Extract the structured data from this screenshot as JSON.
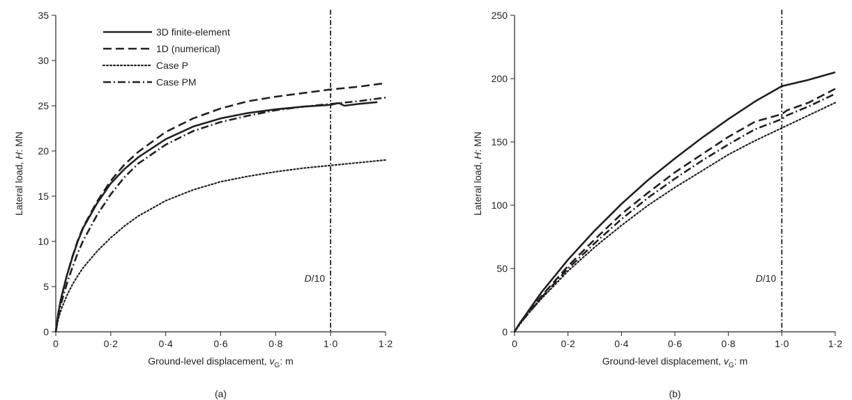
{
  "chart_data": [
    {
      "type": "line",
      "panel_label": "(a)",
      "xlabel_prefix": "Ground-level displacement, ",
      "xlabel_var": "v",
      "xlabel_sub": "G",
      "xlabel_suffix": ": m",
      "ylabel_prefix": "Lateral load, ",
      "ylabel_var": "H",
      "ylabel_suffix": ": MN",
      "xlim": [
        0,
        1.2
      ],
      "ylim": [
        0,
        35
      ],
      "xticks": [
        0,
        0.2,
        0.4,
        0.6,
        0.8,
        1.0,
        1.2
      ],
      "xtick_labels": [
        "0",
        "0·2",
        "0·4",
        "0·6",
        "0·8",
        "1·0",
        "1·2"
      ],
      "yticks": [
        0,
        5,
        10,
        15,
        20,
        25,
        30,
        35
      ],
      "ytick_labels": [
        "0",
        "5",
        "10",
        "15",
        "20",
        "25",
        "30",
        "35"
      ],
      "grid": false,
      "legend_position": "top-left",
      "vline": {
        "x": 1.0,
        "label_var": "D",
        "label_rest": "/10"
      },
      "series": [
        {
          "name": "3D finite-element",
          "style": "solid",
          "x": [
            0,
            0.01,
            0.02,
            0.04,
            0.06,
            0.08,
            0.1,
            0.15,
            0.2,
            0.25,
            0.3,
            0.4,
            0.5,
            0.6,
            0.7,
            0.8,
            0.9,
            1.0,
            1.03,
            1.05,
            1.1,
            1.17
          ],
          "y": [
            0,
            2.2,
            3.8,
            6.2,
            8.2,
            10.0,
            11.5,
            14.2,
            16.4,
            18.0,
            19.3,
            21.3,
            22.7,
            23.6,
            24.2,
            24.6,
            24.9,
            25.1,
            25.3,
            25.0,
            25.2,
            25.4
          ]
        },
        {
          "name": "1D (numerical)",
          "style": "dashed",
          "x": [
            0,
            0.01,
            0.02,
            0.04,
            0.06,
            0.08,
            0.1,
            0.15,
            0.2,
            0.25,
            0.3,
            0.4,
            0.5,
            0.6,
            0.7,
            0.8,
            0.9,
            1.0,
            1.1,
            1.2
          ],
          "y": [
            0,
            2.2,
            3.8,
            6.2,
            8.3,
            10.1,
            11.6,
            14.4,
            16.7,
            18.5,
            19.9,
            22.1,
            23.6,
            24.7,
            25.5,
            26.0,
            26.4,
            26.8,
            27.1,
            27.5
          ]
        },
        {
          "name": "Case P",
          "style": "dotted",
          "x": [
            0,
            0.01,
            0.02,
            0.04,
            0.06,
            0.08,
            0.1,
            0.15,
            0.2,
            0.25,
            0.3,
            0.4,
            0.5,
            0.6,
            0.7,
            0.8,
            0.9,
            1.0,
            1.1,
            1.2
          ],
          "y": [
            0,
            1.5,
            2.5,
            4.0,
            5.2,
            6.2,
            7.1,
            8.9,
            10.4,
            11.7,
            12.8,
            14.5,
            15.7,
            16.6,
            17.2,
            17.7,
            18.1,
            18.4,
            18.7,
            19.0
          ]
        },
        {
          "name": "Case PM",
          "style": "dashdot",
          "x": [
            0,
            0.01,
            0.02,
            0.04,
            0.06,
            0.08,
            0.1,
            0.15,
            0.2,
            0.25,
            0.3,
            0.4,
            0.5,
            0.6,
            0.7,
            0.8,
            0.9,
            1.0,
            1.1,
            1.2
          ],
          "y": [
            0,
            1.8,
            3.2,
            5.3,
            7.1,
            8.7,
            10.1,
            12.9,
            15.2,
            17.1,
            18.6,
            20.7,
            22.2,
            23.2,
            23.9,
            24.5,
            24.9,
            25.2,
            25.5,
            25.9
          ]
        }
      ]
    },
    {
      "type": "line",
      "panel_label": "(b)",
      "xlabel_prefix": "Ground-level displacement, ",
      "xlabel_var": "v",
      "xlabel_sub": "G",
      "xlabel_suffix": ": m",
      "ylabel_prefix": "Lateral load, ",
      "ylabel_var": "H",
      "ylabel_suffix": ": MN",
      "xlim": [
        0,
        1.2
      ],
      "ylim": [
        0,
        250
      ],
      "xticks": [
        0,
        0.2,
        0.4,
        0.6,
        0.8,
        1.0,
        1.2
      ],
      "xtick_labels": [
        "0",
        "0·2",
        "0·4",
        "0·6",
        "0·8",
        "1·0",
        "1·2"
      ],
      "yticks": [
        0,
        50,
        100,
        150,
        200,
        250
      ],
      "ytick_labels": [
        "0",
        "50",
        "100",
        "150",
        "200",
        "250"
      ],
      "grid": false,
      "vline": {
        "x": 1.0,
        "label_var": "D",
        "label_rest": "/10"
      },
      "series": [
        {
          "style": "solid",
          "x": [
            0,
            0.02,
            0.05,
            0.1,
            0.2,
            0.3,
            0.4,
            0.5,
            0.6,
            0.7,
            0.8,
            0.9,
            1.0,
            1.1,
            1.2
          ],
          "y": [
            0,
            7,
            16,
            31,
            57,
            80,
            101,
            120,
            137,
            153,
            168,
            182,
            194,
            199,
            205
          ]
        },
        {
          "style": "dashed",
          "x": [
            0,
            0.02,
            0.05,
            0.1,
            0.2,
            0.3,
            0.4,
            0.5,
            0.6,
            0.7,
            0.8,
            0.9,
            1.0,
            1.02,
            1.1,
            1.2
          ],
          "y": [
            0,
            7,
            15,
            28,
            52,
            73,
            93,
            110,
            126,
            140,
            154,
            166,
            172,
            175,
            181,
            192
          ]
        },
        {
          "style": "dotted",
          "x": [
            0,
            0.02,
            0.05,
            0.1,
            0.2,
            0.3,
            0.4,
            0.5,
            0.6,
            0.7,
            0.8,
            0.9,
            1.0,
            1.1,
            1.2
          ],
          "y": [
            0,
            6,
            14,
            26,
            48,
            67,
            84,
            100,
            114,
            127,
            140,
            151,
            161,
            171,
            181
          ]
        },
        {
          "style": "dashdot",
          "x": [
            0,
            0.02,
            0.05,
            0.1,
            0.2,
            0.3,
            0.4,
            0.5,
            0.6,
            0.7,
            0.8,
            0.9,
            1.0,
            1.02,
            1.1,
            1.2
          ],
          "y": [
            0,
            7,
            14,
            27,
            50,
            70,
            89,
            106,
            121,
            135,
            148,
            160,
            168,
            171,
            178,
            188
          ]
        }
      ]
    }
  ]
}
